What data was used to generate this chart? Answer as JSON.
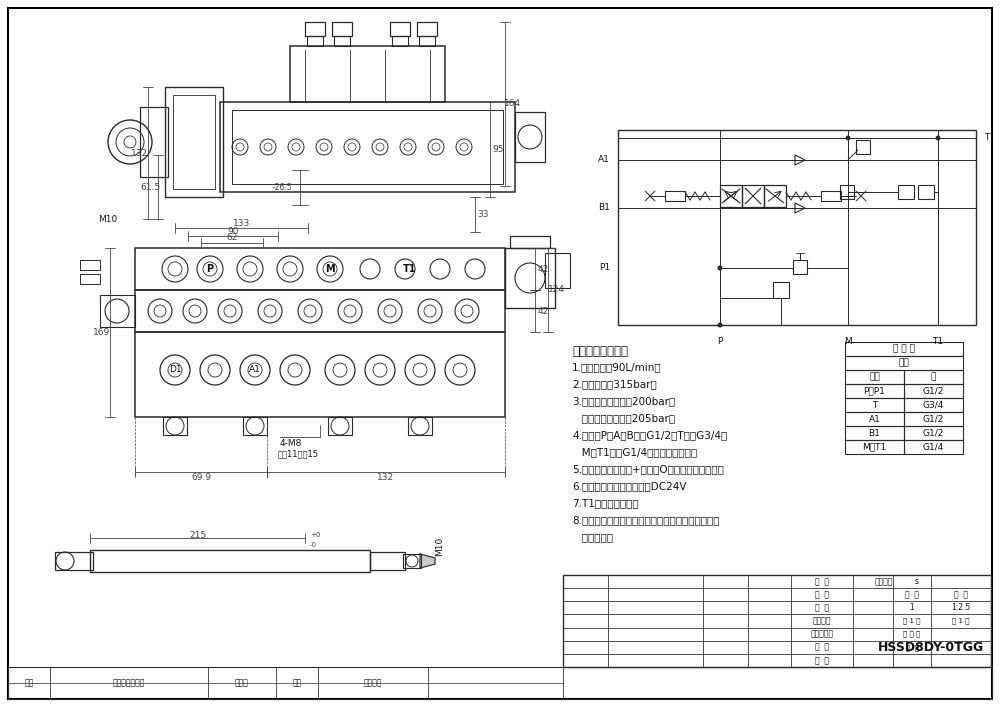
{
  "bg": "#ffffff",
  "lc": "#2a2a2a",
  "dc": "#444444",
  "tc": "#111111",
  "tech_specs": [
    "技术要求和参数：",
    "1.最大流量：90L/min；",
    "2.最高压力：315bar；",
    "3.安全阀调定压力：200bar；",
    "   过载阀调定压力：205bar；",
    "4.油口：P、A、B口为G1/2，T口为G3/4；",
    "   M、T1口为G1/4；均为平面密封；",
    "5.控制方式：电液控+手动，O型阀杆，弹簧复位；",
    "6.线圈：三插线圈，电压：DC24V",
    "7.T1口直接接油筱；",
    "8.阀体表面磷化处理，安全阀及螺堵镀锌，支架后盖",
    "   为铝本色。"
  ],
  "thread_rows": [
    [
      "P、P1",
      "G1/2"
    ],
    [
      "T",
      "G3/4"
    ],
    [
      "A1",
      "G1/2"
    ],
    [
      "B1",
      "G1/2"
    ],
    [
      "M、T1",
      "G1/4"
    ]
  ],
  "drawing_number": "HSSD8DY-0TGG"
}
